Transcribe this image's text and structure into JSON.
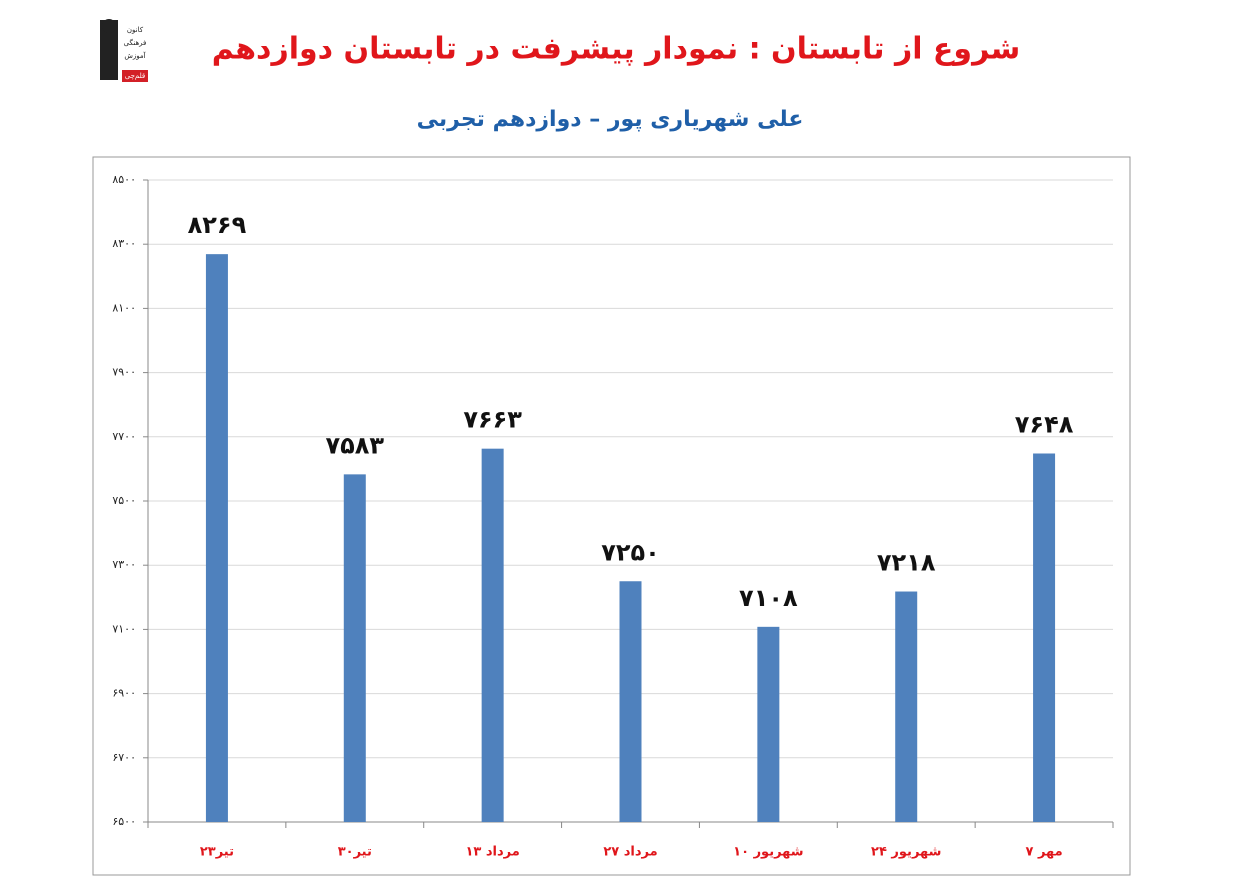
{
  "logo_text": [
    "کانون",
    "فرهنگی",
    "آموزش",
    "قلم‌چی"
  ],
  "chart_data": {
    "type": "bar",
    "title": "شروع از تابستان : نمودار پیشرفت در تابستان دوازدهم",
    "subtitle": "علی شهریاری پور – دوازدهم تجربی",
    "categories": [
      "۲۳تیر",
      "۳۰تیر",
      "۱۳ مرداد",
      "۲۷ مرداد",
      "۱۰ شهریور",
      "۲۴ شهریور",
      "۷ مهر"
    ],
    "values": [
      8269,
      7583,
      7663,
      7250,
      7108,
      7218,
      7648
    ],
    "value_labels": [
      "۸۲۶۹",
      "۷۵۸۳",
      "۷۶۶۳",
      "۷۲۵۰",
      "۷۱۰۸",
      "۷۲۱۸",
      "۷۶۴۸"
    ],
    "color": "#4f81bd",
    "ylim": [
      6500,
      8500
    ],
    "yticks": [
      {
        "value": 6500,
        "label": "۶۵۰۰"
      },
      {
        "value": 6700,
        "label": "۶۷۰۰"
      },
      {
        "value": 6900,
        "label": "۶۹۰۰"
      },
      {
        "value": 7100,
        "label": "۷۱۰۰"
      },
      {
        "value": 7300,
        "label": "۷۳۰۰"
      },
      {
        "value": 7500,
        "label": "۷۵۰۰"
      },
      {
        "value": 7700,
        "label": "۷۷۰۰"
      },
      {
        "value": 7900,
        "label": "۷۹۰۰"
      },
      {
        "value": 8100,
        "label": "۸۱۰۰"
      },
      {
        "value": 8300,
        "label": "۸۳۰۰"
      },
      {
        "value": 8500,
        "label": "۸۵۰۰"
      }
    ],
    "grid": true
  }
}
